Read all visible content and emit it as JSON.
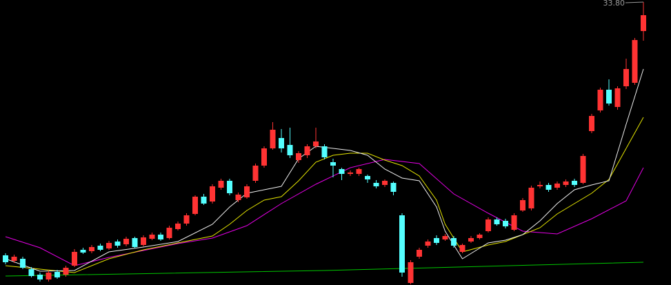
{
  "chart_data": {
    "type": "candlestick",
    "ylim": [
      13.3,
      33.95
    ],
    "up_color": "#ff3333",
    "down_color": "#54ffff",
    "high_label": "33.80",
    "open": [
      15.45,
      15.05,
      15.2,
      14.45,
      14.05,
      13.7,
      14.25,
      14.05,
      14.7,
      15.85,
      15.75,
      16.15,
      15.95,
      16.45,
      16.25,
      16.7,
      16.2,
      16.65,
      16.95,
      16.7,
      17.35,
      17.75,
      18.45,
      19.7,
      19.35,
      20.35,
      20.85,
      19.45,
      19.65,
      20.85,
      21.95,
      23.2,
      23.95,
      23.45,
      22.35,
      22.7,
      23.35,
      23.35,
      22.2,
      21.7,
      21.35,
      21.35,
      21.2,
      20.7,
      20.55,
      20.7,
      18.35,
      13.45,
      15.35,
      16.15,
      16.7,
      16.6,
      16.7,
      15.7,
      16.45,
      16.7,
      17.2,
      18.05,
      17.95,
      17.3,
      18.7,
      18.85,
      20.45,
      20.55,
      20.35,
      20.55,
      20.85,
      20.7,
      24.45,
      25.95,
      27.45,
      26.2,
      27.7,
      27.95,
      31.7
    ],
    "high": [
      15.6,
      15.5,
      15.35,
      14.6,
      14.2,
      14.35,
      14.4,
      14.7,
      15.9,
      16.0,
      16.2,
      16.3,
      16.5,
      16.6,
      16.8,
      16.8,
      16.9,
      17.1,
      17.1,
      17.6,
      17.9,
      18.5,
      19.8,
      19.9,
      20.6,
      21.0,
      21.0,
      20.0,
      20.6,
      22.1,
      23.35,
      25.1,
      24.6,
      24.7,
      23.0,
      23.5,
      24.7,
      23.5,
      22.45,
      21.8,
      21.6,
      21.8,
      21.3,
      20.9,
      20.95,
      20.8,
      18.5,
      15.1,
      16.0,
      16.6,
      16.9,
      17.0,
      16.85,
      16.3,
      16.85,
      17.05,
      18.2,
      18.2,
      18.1,
      18.5,
      19.6,
      20.5,
      20.8,
      20.7,
      20.8,
      20.95,
      21.0,
      22.8,
      25.7,
      27.6,
      28.2,
      27.7,
      29.7,
      31.2,
      33.8
    ],
    "low": [
      14.8,
      14.9,
      14.45,
      13.85,
      13.55,
      13.55,
      13.75,
      13.9,
      14.6,
      15.55,
      15.6,
      15.75,
      15.85,
      16.0,
      16.1,
      15.95,
      16.1,
      16.55,
      16.5,
      16.6,
      17.25,
      17.6,
      18.35,
      19.1,
      19.2,
      20.2,
      19.8,
      19.3,
      19.55,
      20.7,
      21.8,
      23.1,
      22.9,
      22.5,
      22.15,
      22.5,
      23.2,
      22.4,
      21.1,
      20.9,
      21.2,
      21.2,
      20.7,
      20.3,
      20.4,
      19.8,
      13.9,
      13.35,
      15.2,
      16.0,
      16.2,
      16.5,
      16.0,
      15.6,
      16.35,
      16.6,
      17.1,
      17.6,
      17.4,
      17.2,
      18.6,
      18.7,
      20.3,
      20.05,
      20.2,
      20.4,
      20.4,
      20.6,
      24.3,
      25.8,
      26.3,
      26.0,
      27.5,
      27.8,
      31.0
    ],
    "close": [
      14.95,
      15.35,
      14.55,
      13.95,
      13.7,
      14.2,
      13.85,
      14.55,
      15.7,
      15.65,
      16.05,
      15.85,
      16.35,
      16.15,
      16.65,
      16.05,
      16.75,
      16.95,
      16.6,
      17.45,
      17.75,
      18.35,
      19.7,
      19.2,
      20.45,
      20.85,
      19.95,
      19.85,
      20.45,
      21.95,
      23.2,
      24.55,
      23.2,
      22.7,
      22.85,
      23.35,
      23.7,
      22.55,
      21.95,
      21.35,
      21.45,
      21.7,
      20.95,
      20.45,
      20.85,
      20.05,
      14.2,
      14.95,
      15.85,
      16.45,
      16.35,
      16.85,
      16.15,
      16.2,
      16.7,
      16.95,
      18.05,
      17.7,
      17.55,
      18.35,
      19.45,
      20.35,
      20.55,
      20.2,
      20.65,
      20.8,
      20.55,
      22.65,
      25.55,
      27.45,
      26.45,
      27.55,
      28.95,
      31.05,
      32.85
    ],
    "lines": [
      {
        "color": "#00c800",
        "x": [
          0,
          37,
          74
        ],
        "values": [
          13.95,
          14.35,
          14.95
        ]
      },
      {
        "color": "#e600e6",
        "x": [
          0,
          4,
          8,
          12,
          16,
          20,
          24,
          28,
          32,
          36,
          40,
          44,
          48,
          52,
          56,
          60,
          64,
          68,
          72,
          74
        ],
        "values": [
          16.8,
          16.0,
          14.7,
          15.3,
          15.8,
          16.3,
          16.7,
          17.6,
          19.2,
          20.6,
          21.8,
          22.4,
          22.1,
          19.9,
          18.5,
          17.2,
          17.0,
          18.1,
          19.4,
          21.8
        ]
      },
      {
        "color": "#e6e600",
        "x": [
          0,
          4,
          8,
          12,
          16,
          20,
          24,
          26,
          28,
          30,
          32,
          34,
          36,
          38,
          40,
          42,
          44,
          46,
          48,
          50,
          51,
          53,
          56,
          58,
          60,
          62,
          64,
          66,
          68,
          70,
          72,
          74
        ],
        "values": [
          14.7,
          14.45,
          14.2,
          15.2,
          15.85,
          16.35,
          16.85,
          17.7,
          18.7,
          19.45,
          19.7,
          20.85,
          22.2,
          22.7,
          22.85,
          22.85,
          22.35,
          21.95,
          21.2,
          19.45,
          17.7,
          15.7,
          16.2,
          16.45,
          16.95,
          17.45,
          18.45,
          19.2,
          19.95,
          20.95,
          23.2,
          25.45
        ]
      },
      {
        "color": "#f0f0f0",
        "x": [
          0,
          4,
          8,
          12,
          16,
          20,
          24,
          26,
          28,
          30,
          32,
          34,
          36,
          38,
          40,
          42,
          44,
          46,
          48,
          50,
          51,
          53,
          56,
          58,
          60,
          62,
          64,
          66,
          68,
          70,
          72,
          74
        ],
        "values": [
          15.2,
          14.3,
          14.35,
          15.7,
          16.05,
          16.45,
          17.7,
          18.95,
          19.95,
          20.2,
          20.45,
          22.45,
          23.35,
          23.2,
          23.05,
          22.7,
          21.7,
          21.05,
          20.85,
          18.95,
          17.2,
          15.2,
          16.35,
          16.55,
          16.95,
          17.95,
          19.2,
          20.2,
          20.55,
          20.85,
          24.95,
          28.95
        ]
      }
    ]
  }
}
